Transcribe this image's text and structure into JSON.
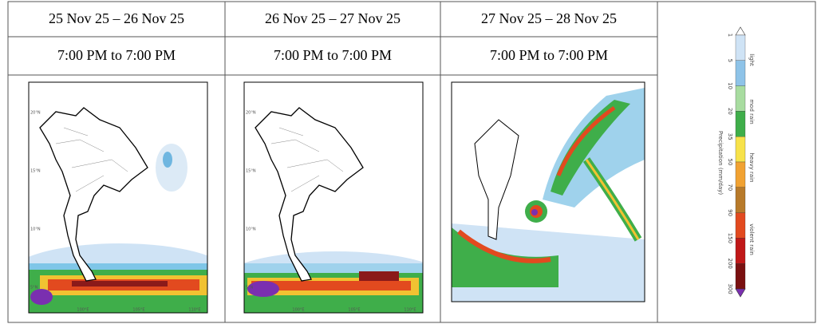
{
  "columns": [
    {
      "date": "25 Nov 25 – 26 Nov 25",
      "time": "7:00 PM to 7:00 PM",
      "lat_labels": [
        "20°N",
        "15°N",
        "10°N",
        "5°N"
      ],
      "lon_labels": [
        "100°E",
        "105°E",
        "110°E"
      ]
    },
    {
      "date": "26 Nov 25 – 27 Nov 25",
      "time": "7:00 PM to 7:00 PM",
      "lat_labels": [
        "20°N",
        "15°N",
        "10°N",
        "5°N"
      ],
      "lon_labels": [
        "100°E",
        "105°E",
        "110°E"
      ]
    },
    {
      "date": "27 Nov 25 – 28 Nov 25",
      "time": "7:00 PM to 7:00 PM"
    }
  ],
  "legend": {
    "title": "Precipitation (mm/day)",
    "ticks": [
      "1",
      "5",
      "10",
      "20",
      "35",
      "50",
      "70",
      "90",
      "150",
      "200",
      "300"
    ],
    "classes": [
      "light",
      "mod rain",
      "heavy rain",
      "violent rain"
    ]
  }
}
